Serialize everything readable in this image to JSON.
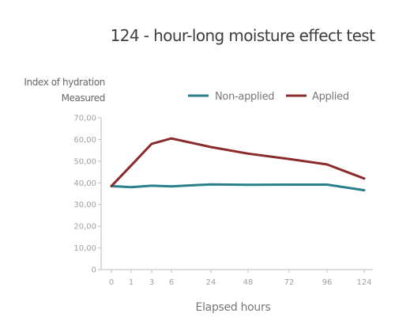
{
  "chart_data": {
    "type": "line",
    "title": "124 - hour-long moisture effect test",
    "ylabel_lines": [
      "Index of hydration",
      "Measured"
    ],
    "xlabel": "Elapsed hours",
    "x_categories": [
      "0",
      "1",
      "3",
      "6",
      "24",
      "48",
      "72",
      "96",
      "124"
    ],
    "y_ticks": [
      "0",
      "10,00",
      "20,00",
      "30,00",
      "40,00",
      "50,00",
      "60,00",
      "70,00"
    ],
    "ylim": [
      0,
      70
    ],
    "grid": false,
    "legend_position": "top-right",
    "series": [
      {
        "name": "Non-applied",
        "color": "#2a7f8c",
        "x": [
          0,
          1,
          3,
          6,
          24,
          48,
          72,
          96,
          124
        ],
        "values": [
          38.5,
          38.0,
          38.7,
          38.4,
          39.3,
          39.1,
          39.2,
          39.2,
          36.6
        ]
      },
      {
        "name": "Applied",
        "color": "#8b2a2a",
        "x": [
          0,
          1,
          3,
          6,
          24,
          48,
          72,
          96,
          124
        ],
        "values": [
          38.5,
          48.0,
          58.0,
          60.5,
          56.5,
          53.5,
          51.0,
          48.5,
          42.0
        ]
      }
    ]
  }
}
